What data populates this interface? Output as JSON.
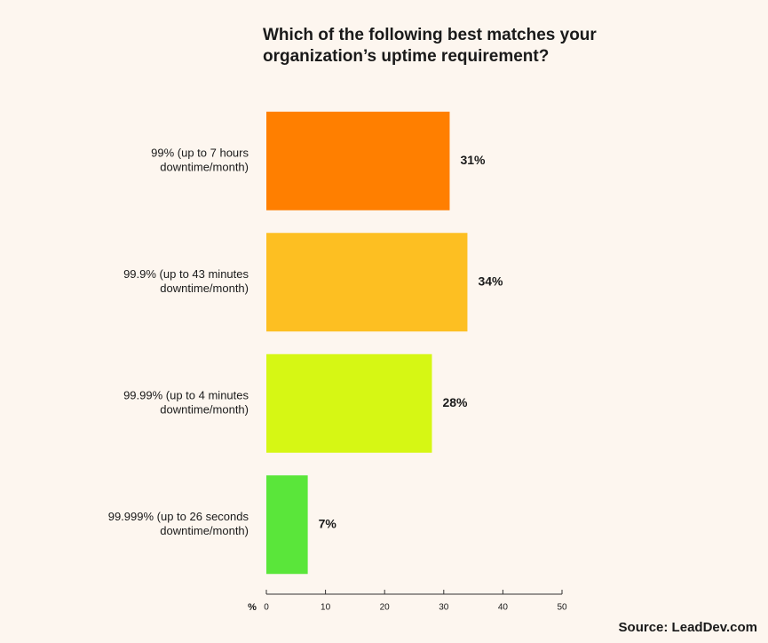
{
  "chart_data": {
    "type": "bar",
    "orientation": "horizontal",
    "title": [
      "Which of the following best matches your",
      "organization’s uptime requirement?"
    ],
    "categories": [
      [
        "99% (up to 7 hours",
        "downtime/month)"
      ],
      [
        "99.9% (up to 43 minutes",
        "downtime/month)"
      ],
      [
        "99.99% (up to 4 minutes",
        "downtime/month)"
      ],
      [
        "99.999% (up to 26 seconds",
        "downtime/month)"
      ]
    ],
    "values": [
      31,
      34,
      28,
      7
    ],
    "value_labels": [
      "31%",
      "34%",
      "28%",
      "7%"
    ],
    "colors": [
      "#ff7f00",
      "#fdbf22",
      "#d6f714",
      "#5ae63a"
    ],
    "xlim": [
      0,
      50
    ],
    "xticks": [
      0,
      10,
      20,
      30,
      40,
      50
    ],
    "x_axis_label": "%",
    "source": "Source: LeadDev.com"
  }
}
